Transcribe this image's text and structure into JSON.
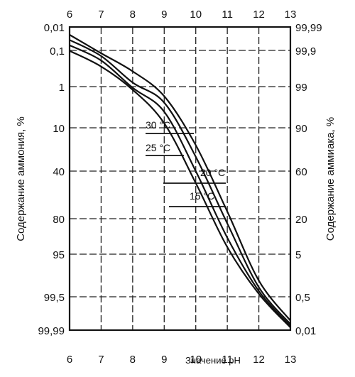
{
  "chart_data": {
    "type": "line",
    "xlabel": "Значение pH",
    "ylabel_left": "Содержание аммония, %",
    "ylabel_right": "Содержание аммиака, %",
    "xlim": [
      6,
      13
    ],
    "x_ticks": [
      "6",
      "7",
      "8",
      "9",
      "10",
      "11",
      "12",
      "13"
    ],
    "y_ticks_left": [
      "0,01",
      "0,1",
      "1",
      "10",
      "40",
      "80",
      "95",
      "99,5",
      "99,99"
    ],
    "y_ticks_right": [
      "99,99",
      "99,9",
      "99",
      "90",
      "60",
      "20",
      "5",
      "0,5",
      "0,01"
    ],
    "grid": true,
    "series": [
      {
        "name": "30 °C",
        "x": [
          6,
          7,
          8,
          9,
          10,
          11,
          12,
          13
        ],
        "y": [
          0.11,
          0.5,
          1.7,
          9,
          50,
          92,
          99.2,
          99.95
        ]
      },
      {
        "name": "25 °C",
        "x": [
          6,
          7,
          8,
          9,
          10,
          11,
          12,
          13
        ],
        "y": [
          0.08,
          0.35,
          1.25,
          6.5,
          40,
          88,
          98.9,
          99.93
        ]
      },
      {
        "name": "20 °C",
        "x": [
          6,
          7,
          8,
          9,
          10,
          11,
          12,
          13
        ],
        "y": [
          0.06,
          0.24,
          0.9,
          4.5,
          30,
          82,
          98.5,
          99.9
        ]
      },
      {
        "name": "15 °C",
        "x": [
          6,
          7,
          8,
          9,
          10,
          11,
          12,
          13
        ],
        "y": [
          0.04,
          0.17,
          0.62,
          3.1,
          22,
          74,
          97.8,
          99.85
        ]
      }
    ]
  }
}
